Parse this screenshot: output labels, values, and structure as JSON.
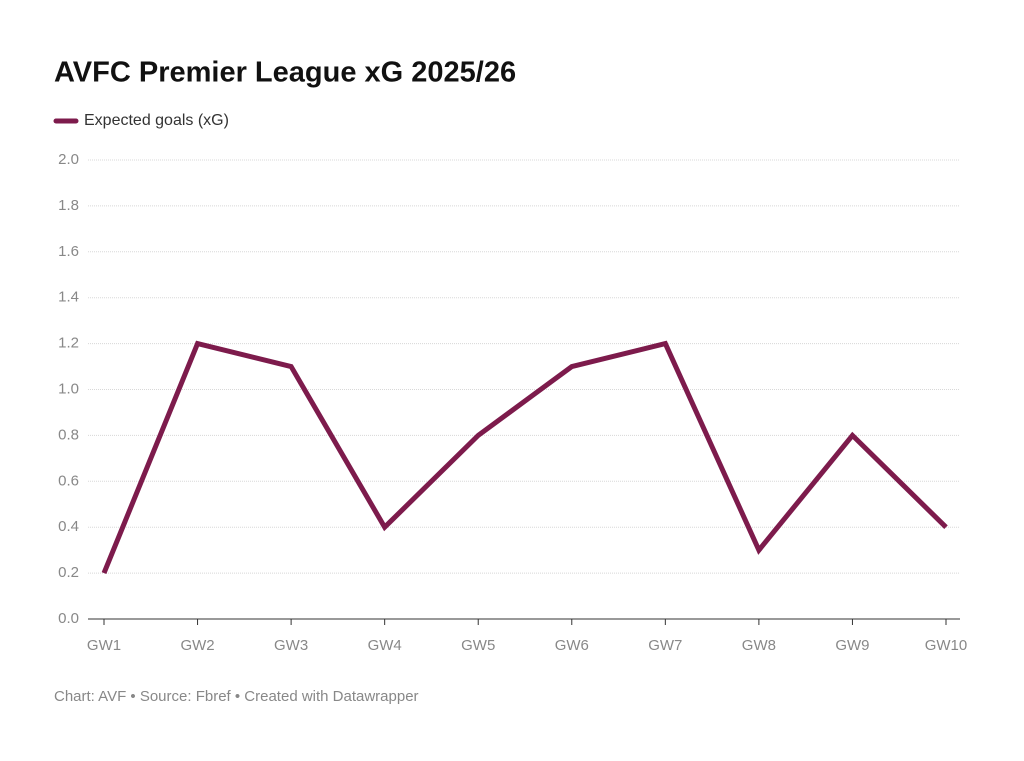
{
  "chart_data": {
    "type": "line",
    "title": "AVFC Premier League xG 2025/26",
    "categories": [
      "GW1",
      "GW2",
      "GW3",
      "GW4",
      "GW5",
      "GW6",
      "GW7",
      "GW8",
      "GW9",
      "GW10"
    ],
    "series": [
      {
        "name": "Expected goals (xG)",
        "color": "#7d1b4c",
        "values": [
          0.2,
          1.2,
          1.1,
          0.4,
          0.8,
          1.1,
          1.2,
          0.3,
          0.8,
          0.4
        ]
      }
    ],
    "ylim": [
      0,
      2
    ],
    "yticks": [
      {
        "value": 0,
        "label": "0.0"
      },
      0.2,
      0.4,
      0.6,
      0.8,
      {
        "value": 1,
        "label": "1.0"
      },
      1.2,
      1.4,
      1.6,
      1.8,
      {
        "value": 2,
        "label": "2.0"
      }
    ],
    "grid": true,
    "legend": "top-left",
    "source": "Chart: AVF • Source: Fbref • Created with Datawrapper"
  }
}
